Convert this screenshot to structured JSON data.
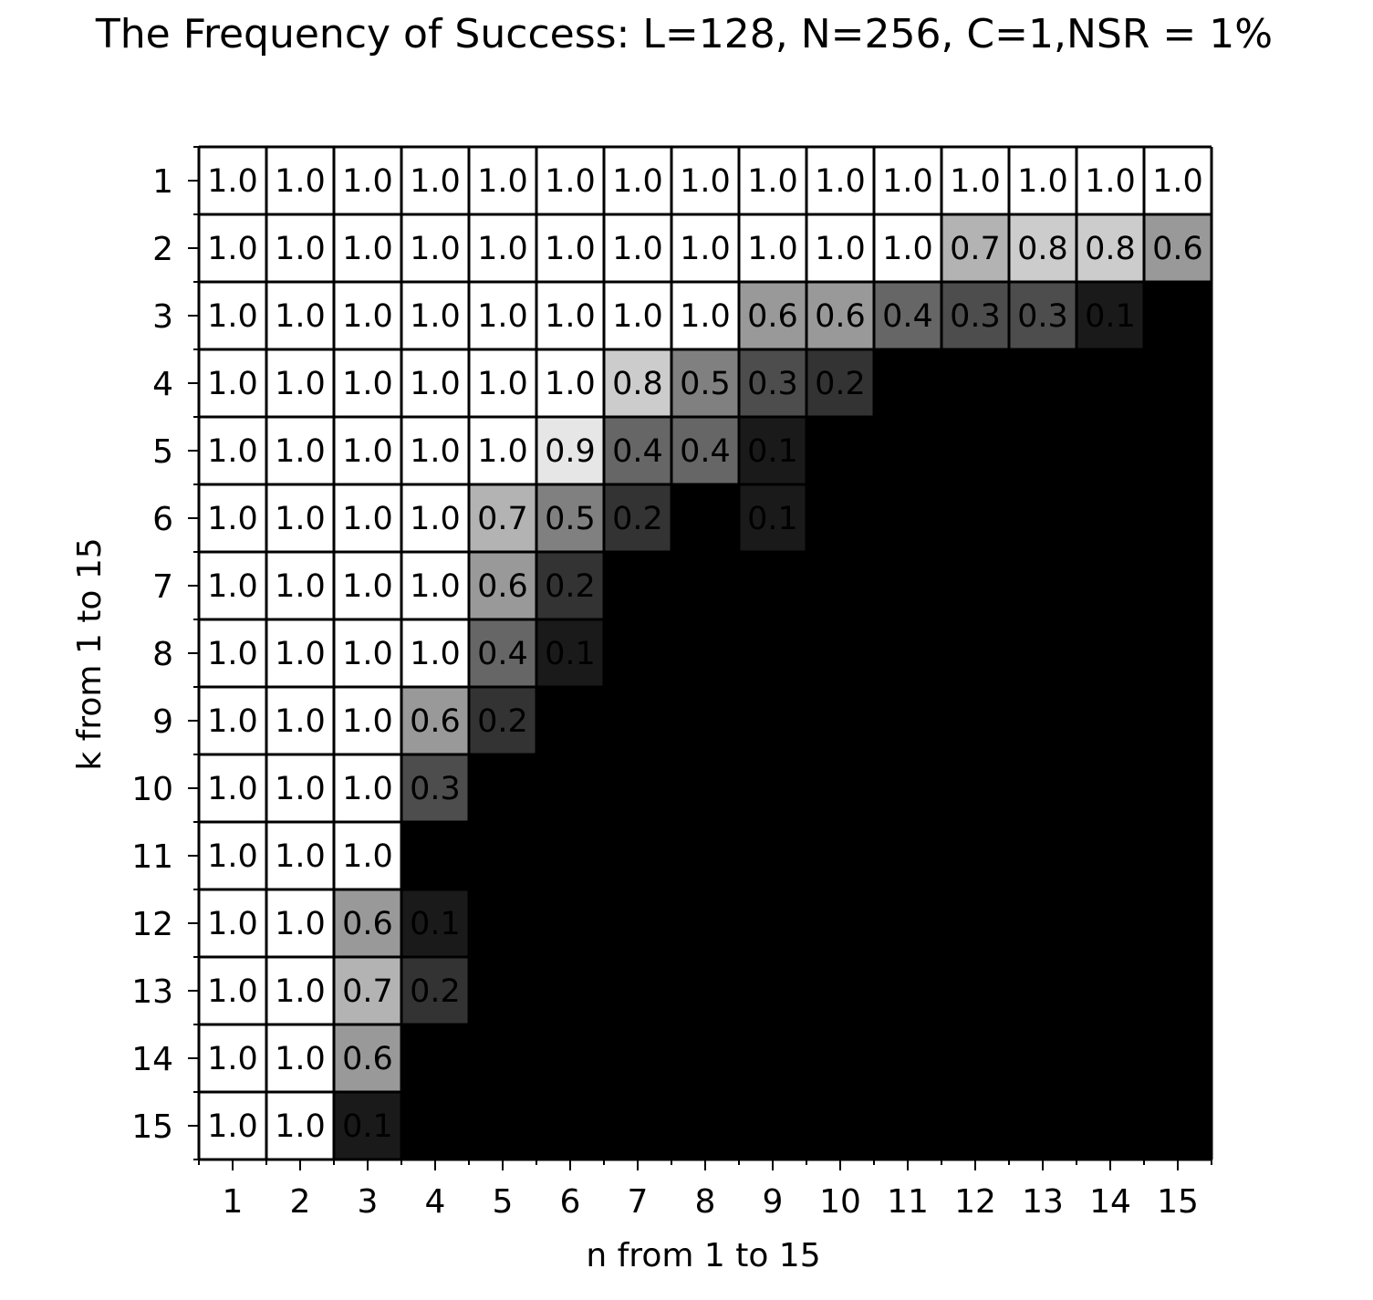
{
  "chart_data": {
    "type": "heatmap",
    "title": "The Frequency of Success: L=128, N=256, C=1,NSR = 1%",
    "xlabel": "n from 1 to 15",
    "ylabel": "k from 1 to 15",
    "x_ticks": [
      "1",
      "2",
      "3",
      "4",
      "5",
      "6",
      "7",
      "8",
      "9",
      "10",
      "11",
      "12",
      "13",
      "14",
      "15"
    ],
    "y_ticks": [
      "1",
      "2",
      "3",
      "4",
      "5",
      "6",
      "7",
      "8",
      "9",
      "10",
      "11",
      "12",
      "13",
      "14",
      "15"
    ],
    "colormap": "gray",
    "vmin": 0,
    "vmax": 1,
    "grid": true,
    "values": [
      [
        1.0,
        1.0,
        1.0,
        1.0,
        1.0,
        1.0,
        1.0,
        1.0,
        1.0,
        1.0,
        1.0,
        1.0,
        1.0,
        1.0,
        1.0
      ],
      [
        1.0,
        1.0,
        1.0,
        1.0,
        1.0,
        1.0,
        1.0,
        1.0,
        1.0,
        1.0,
        1.0,
        0.7,
        0.8,
        0.8,
        0.6
      ],
      [
        1.0,
        1.0,
        1.0,
        1.0,
        1.0,
        1.0,
        1.0,
        1.0,
        0.6,
        0.6,
        0.4,
        0.3,
        0.3,
        0.1,
        0.0
      ],
      [
        1.0,
        1.0,
        1.0,
        1.0,
        1.0,
        1.0,
        0.8,
        0.5,
        0.3,
        0.2,
        0.0,
        0.0,
        0.0,
        0.0,
        0.0
      ],
      [
        1.0,
        1.0,
        1.0,
        1.0,
        1.0,
        0.9,
        0.4,
        0.4,
        0.1,
        0.0,
        0.0,
        0.0,
        0.0,
        0.0,
        0.0
      ],
      [
        1.0,
        1.0,
        1.0,
        1.0,
        0.7,
        0.5,
        0.2,
        0.0,
        0.1,
        0.0,
        0.0,
        0.0,
        0.0,
        0.0,
        0.0
      ],
      [
        1.0,
        1.0,
        1.0,
        1.0,
        0.6,
        0.2,
        0.0,
        0.0,
        0.0,
        0.0,
        0.0,
        0.0,
        0.0,
        0.0,
        0.0
      ],
      [
        1.0,
        1.0,
        1.0,
        1.0,
        0.4,
        0.1,
        0.0,
        0.0,
        0.0,
        0.0,
        0.0,
        0.0,
        0.0,
        0.0,
        0.0
      ],
      [
        1.0,
        1.0,
        1.0,
        0.6,
        0.2,
        0.0,
        0.0,
        0.0,
        0.0,
        0.0,
        0.0,
        0.0,
        0.0,
        0.0,
        0.0
      ],
      [
        1.0,
        1.0,
        1.0,
        0.3,
        0.0,
        0.0,
        0.0,
        0.0,
        0.0,
        0.0,
        0.0,
        0.0,
        0.0,
        0.0,
        0.0
      ],
      [
        1.0,
        1.0,
        1.0,
        0.0,
        0.0,
        0.0,
        0.0,
        0.0,
        0.0,
        0.0,
        0.0,
        0.0,
        0.0,
        0.0,
        0.0
      ],
      [
        1.0,
        1.0,
        0.6,
        0.1,
        0.0,
        0.0,
        0.0,
        0.0,
        0.0,
        0.0,
        0.0,
        0.0,
        0.0,
        0.0,
        0.0
      ],
      [
        1.0,
        1.0,
        0.7,
        0.2,
        0.0,
        0.0,
        0.0,
        0.0,
        0.0,
        0.0,
        0.0,
        0.0,
        0.0,
        0.0,
        0.0
      ],
      [
        1.0,
        1.0,
        0.6,
        0.0,
        0.0,
        0.0,
        0.0,
        0.0,
        0.0,
        0.0,
        0.0,
        0.0,
        0.0,
        0.0,
        0.0
      ],
      [
        1.0,
        1.0,
        0.1,
        0.0,
        0.0,
        0.0,
        0.0,
        0.0,
        0.0,
        0.0,
        0.0,
        0.0,
        0.0,
        0.0,
        0.0
      ]
    ]
  }
}
